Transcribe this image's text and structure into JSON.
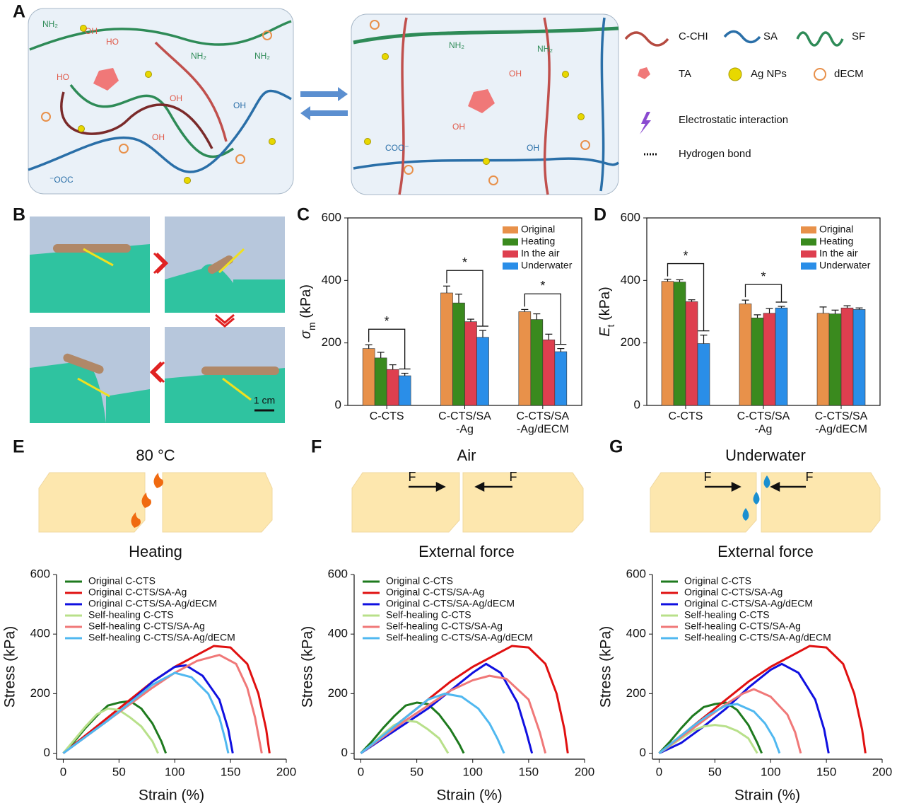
{
  "panel_labels": [
    "A",
    "B",
    "C",
    "D",
    "E",
    "F",
    "G"
  ],
  "diagram": {
    "legend": [
      "C-CHI",
      "SA",
      "SF",
      "TA",
      "Ag NPs",
      "dECM",
      "Electrostatic interaction",
      "Hydrogen bond"
    ],
    "chem_labels": [
      "NH₂",
      "OH",
      "HO",
      "NH₂",
      "⁻OOC",
      "OH",
      "HO",
      "NH₂",
      "OH",
      "OH",
      "NH₂",
      "OH",
      "NH₂",
      "COO⁻",
      "OH",
      "OH"
    ]
  },
  "photo": {
    "scale_bar": "1 cm"
  },
  "panel_headers": {
    "E": {
      "top": "80 °C",
      "bottom": "Heating"
    },
    "F": {
      "top": "Air",
      "bottom": "External force",
      "force": [
        "F",
        "F"
      ]
    },
    "G": {
      "top": "Underwater",
      "bottom": "External force",
      "force": [
        "F",
        "F"
      ]
    }
  },
  "chart_data": [
    {
      "type": "bar",
      "ylabel": {
        "symbol": "σ",
        "subscript": "m",
        "unit": " (kPa)"
      },
      "categories": [
        "C-CTS",
        "C-CTS/SA\n-Ag",
        "C-CTS/SA\n-Ag/dECM"
      ],
      "series": [
        {
          "name": "Original",
          "color": "#e8914a",
          "values": [
            182,
            360,
            300
          ],
          "errors": [
            12,
            22,
            7
          ]
        },
        {
          "name": "Heating",
          "color": "#3a8a1e",
          "values": [
            152,
            328,
            275
          ],
          "errors": [
            18,
            28,
            18
          ]
        },
        {
          "name": "In the air",
          "color": "#de3f4f",
          "values": [
            115,
            268,
            210
          ],
          "errors": [
            15,
            8,
            18
          ]
        },
        {
          "name": "Underwater",
          "color": "#2a8ee8",
          "values": [
            95,
            218,
            172
          ],
          "errors": [
            8,
            22,
            10
          ]
        }
      ],
      "annotations": [
        "*",
        "*",
        "*"
      ],
      "ylim": [
        0,
        600
      ],
      "yticks": [
        0,
        200,
        400,
        600
      ]
    },
    {
      "type": "bar",
      "ylabel": {
        "symbol": "E",
        "subscript": "t",
        "unit": " (kPa)"
      },
      "categories": [
        "C-CTS",
        "C-CTS/SA\n-Ag",
        "C-CTS/SA\n-Ag/dECM"
      ],
      "series": [
        {
          "name": "Original",
          "color": "#e8914a",
          "values": [
            397,
            325,
            295
          ],
          "errors": [
            7,
            12,
            20
          ]
        },
        {
          "name": "Heating",
          "color": "#3a8a1e",
          "values": [
            395,
            280,
            293
          ],
          "errors": [
            7,
            10,
            12
          ]
        },
        {
          "name": "In the air",
          "color": "#de3f4f",
          "values": [
            332,
            295,
            312
          ],
          "errors": [
            6,
            15,
            7
          ]
        },
        {
          "name": "Underwater",
          "color": "#2a8ee8",
          "values": [
            198,
            312,
            307
          ],
          "errors": [
            27,
            5,
            5
          ]
        }
      ],
      "annotations": [
        "*",
        "*"
      ],
      "ylim": [
        0,
        600
      ],
      "yticks": [
        0,
        200,
        400,
        600
      ]
    },
    {
      "type": "line",
      "xlabel": "Strain (%)",
      "ylabel": "Stress (kPa)",
      "xlim": [
        -6,
        200
      ],
      "ylim": [
        -20,
        600
      ],
      "xticks": [
        0,
        50,
        100,
        150,
        200
      ],
      "yticks": [
        0,
        200,
        400,
        600
      ],
      "series": [
        {
          "name": "Original C-CTS",
          "color": "#1e7a1e",
          "x": [
            0,
            10,
            20,
            30,
            40,
            50,
            60,
            70,
            80,
            88,
            92
          ],
          "values": [
            0,
            40,
            85,
            125,
            160,
            170,
            175,
            150,
            100,
            40,
            0
          ]
        },
        {
          "name": "Original C-CTS/SA-Ag",
          "color": "#e01010",
          "x": [
            0,
            20,
            40,
            60,
            80,
            100,
            120,
            135,
            150,
            165,
            175,
            182,
            185
          ],
          "values": [
            0,
            60,
            120,
            180,
            240,
            290,
            330,
            360,
            355,
            300,
            200,
            80,
            0
          ]
        },
        {
          "name": "Original C-CTS/SA-Ag/dECM",
          "color": "#1010e0",
          "x": [
            0,
            20,
            40,
            60,
            80,
            100,
            110,
            125,
            140,
            148,
            152
          ],
          "values": [
            0,
            55,
            110,
            170,
            240,
            290,
            295,
            260,
            180,
            80,
            0
          ]
        },
        {
          "name": "Self-healing C-CTS",
          "color": "#b8e08a",
          "x": [
            0,
            10,
            20,
            30,
            40,
            50,
            60,
            70,
            80,
            85
          ],
          "values": [
            0,
            45,
            90,
            130,
            150,
            145,
            120,
            90,
            40,
            0
          ]
        },
        {
          "name": "Self-healing C-CTS/SA-Ag",
          "color": "#f07878",
          "x": [
            0,
            20,
            40,
            60,
            80,
            100,
            120,
            140,
            155,
            165,
            172,
            178
          ],
          "values": [
            0,
            55,
            110,
            165,
            220,
            270,
            310,
            330,
            300,
            220,
            120,
            0
          ]
        },
        {
          "name": "Self-healing C-CTS/SA-Ag/dECM",
          "color": "#50b8f0",
          "x": [
            0,
            20,
            40,
            60,
            80,
            100,
            115,
            130,
            140,
            145,
            148
          ],
          "values": [
            0,
            55,
            110,
            170,
            230,
            270,
            255,
            200,
            120,
            50,
            0
          ]
        }
      ]
    },
    {
      "type": "line",
      "xlabel": "Strain (%)",
      "ylabel": "Stress (kPa)",
      "xlim": [
        -6,
        200
      ],
      "ylim": [
        -20,
        600
      ],
      "xticks": [
        0,
        50,
        100,
        150,
        200
      ],
      "yticks": [
        0,
        200,
        400,
        600
      ],
      "series": [
        {
          "name": "Original C-CTS",
          "color": "#1e7a1e",
          "x": [
            0,
            10,
            20,
            30,
            40,
            50,
            60,
            70,
            80,
            88,
            92
          ],
          "values": [
            0,
            40,
            85,
            125,
            160,
            170,
            165,
            130,
            80,
            30,
            0
          ]
        },
        {
          "name": "Original C-CTS/SA-Ag",
          "color": "#e01010",
          "x": [
            0,
            20,
            40,
            60,
            80,
            100,
            120,
            135,
            150,
            165,
            175,
            182,
            185
          ],
          "values": [
            0,
            60,
            120,
            180,
            240,
            290,
            330,
            360,
            355,
            300,
            200,
            80,
            0
          ]
        },
        {
          "name": "Original C-CTS/SA-Ag/dECM",
          "color": "#1010e0",
          "x": [
            0,
            20,
            40,
            60,
            80,
            100,
            112,
            125,
            140,
            148,
            153
          ],
          "values": [
            0,
            50,
            100,
            150,
            210,
            270,
            300,
            270,
            170,
            70,
            0
          ]
        },
        {
          "name": "Self-healing C-CTS",
          "color": "#b8e08a",
          "x": [
            0,
            10,
            20,
            30,
            40,
            50,
            60,
            70,
            78
          ],
          "values": [
            0,
            30,
            65,
            95,
            110,
            105,
            80,
            50,
            0
          ]
        },
        {
          "name": "Self-healing C-CTS/SA-Ag",
          "color": "#f07878",
          "x": [
            0,
            20,
            40,
            60,
            80,
            100,
            115,
            130,
            150,
            160,
            165
          ],
          "values": [
            0,
            55,
            110,
            160,
            210,
            245,
            260,
            250,
            180,
            70,
            0
          ]
        },
        {
          "name": "Self-healing C-CTS/SA-Ag/dECM",
          "color": "#50b8f0",
          "x": [
            0,
            20,
            40,
            60,
            75,
            90,
            105,
            115,
            122,
            128
          ],
          "values": [
            0,
            60,
            120,
            180,
            200,
            190,
            150,
            100,
            50,
            0
          ]
        }
      ]
    },
    {
      "type": "line",
      "xlabel": "Strain (%)",
      "ylabel": "Stress (kPa)",
      "xlim": [
        -6,
        200
      ],
      "ylim": [
        -20,
        600
      ],
      "xticks": [
        0,
        50,
        100,
        150,
        200
      ],
      "yticks": [
        0,
        200,
        400,
        600
      ],
      "series": [
        {
          "name": "Original C-CTS",
          "color": "#1e7a1e",
          "x": [
            0,
            10,
            20,
            30,
            40,
            50,
            60,
            70,
            80,
            88,
            92
          ],
          "values": [
            0,
            40,
            85,
            125,
            155,
            165,
            170,
            145,
            95,
            35,
            0
          ]
        },
        {
          "name": "Original C-CTS/SA-Ag",
          "color": "#e01010",
          "x": [
            0,
            20,
            40,
            60,
            80,
            100,
            120,
            135,
            150,
            165,
            175,
            182,
            185
          ],
          "values": [
            0,
            60,
            120,
            180,
            240,
            290,
            330,
            360,
            355,
            300,
            200,
            80,
            0
          ]
        },
        {
          "name": "Original C-CTS/SA-Ag/dECM",
          "color": "#1010e0",
          "x": [
            0,
            20,
            40,
            60,
            80,
            100,
            110,
            125,
            140,
            148,
            152
          ],
          "values": [
            0,
            35,
            90,
            150,
            220,
            280,
            300,
            270,
            180,
            80,
            0
          ]
        },
        {
          "name": "Self-healing C-CTS",
          "color": "#b8e08a",
          "x": [
            0,
            10,
            20,
            30,
            40,
            50,
            60,
            70,
            80,
            88
          ],
          "values": [
            0,
            25,
            50,
            75,
            90,
            95,
            90,
            75,
            50,
            0
          ]
        },
        {
          "name": "Self-healing C-CTS/SA-Ag",
          "color": "#f07878",
          "x": [
            0,
            20,
            40,
            60,
            75,
            85,
            100,
            115,
            122,
            127
          ],
          "values": [
            0,
            55,
            110,
            165,
            200,
            215,
            190,
            130,
            70,
            0
          ]
        },
        {
          "name": "Self-healing C-CTS/SA-Ag/dECM",
          "color": "#50b8f0",
          "x": [
            0,
            15,
            30,
            45,
            60,
            70,
            85,
            95,
            103,
            108
          ],
          "values": [
            0,
            45,
            90,
            130,
            160,
            165,
            140,
            100,
            50,
            0
          ]
        }
      ]
    }
  ]
}
